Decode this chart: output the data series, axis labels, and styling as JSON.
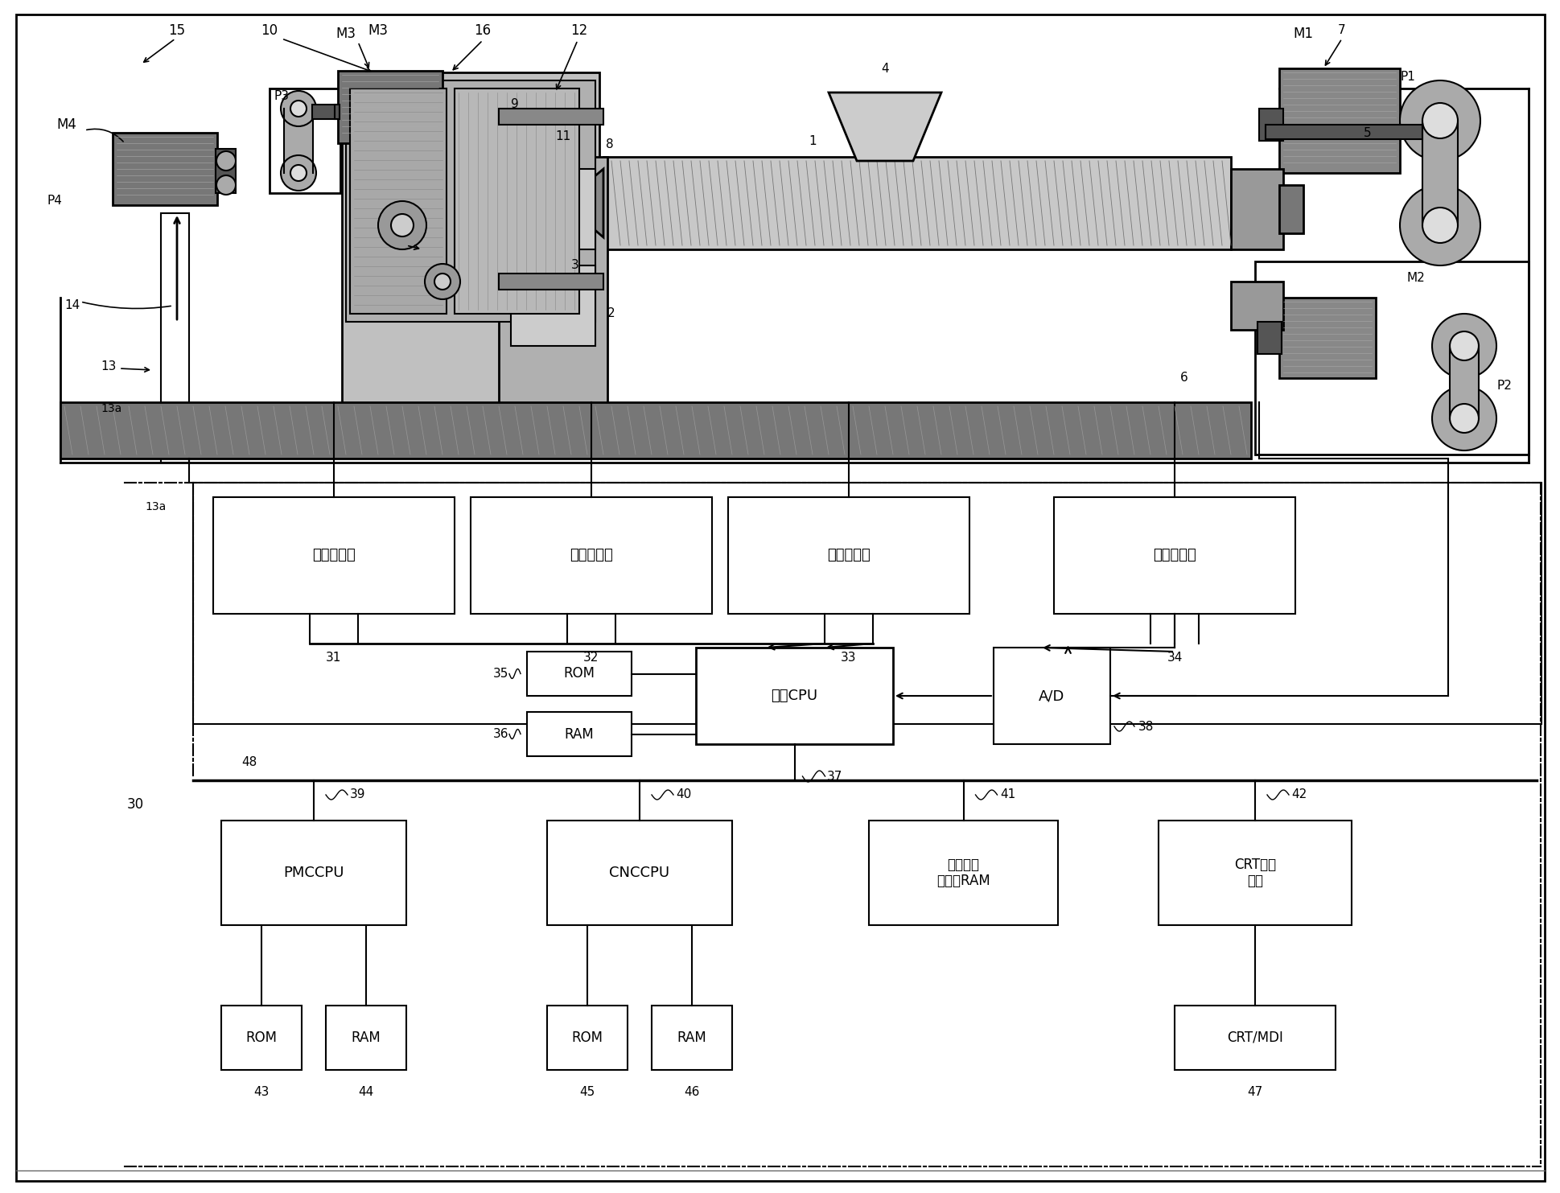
{
  "bg": "#ffffff",
  "fw": 19.39,
  "fh": 14.83,
  "dpi": 100,
  "servo_amp": "伺服放大器",
  "servo_cpu": "伺服CPU",
  "ad": "A/D",
  "pmccpu": "PMCCPU",
  "cnccpu": "CNCCPU",
  "forming_ram": "成形数据\n保存用RAM",
  "crt_circuit": "CRT显示\n电路",
  "rom": "ROM",
  "ram": "RAM",
  "crt_mdi": "CRT/MDI"
}
